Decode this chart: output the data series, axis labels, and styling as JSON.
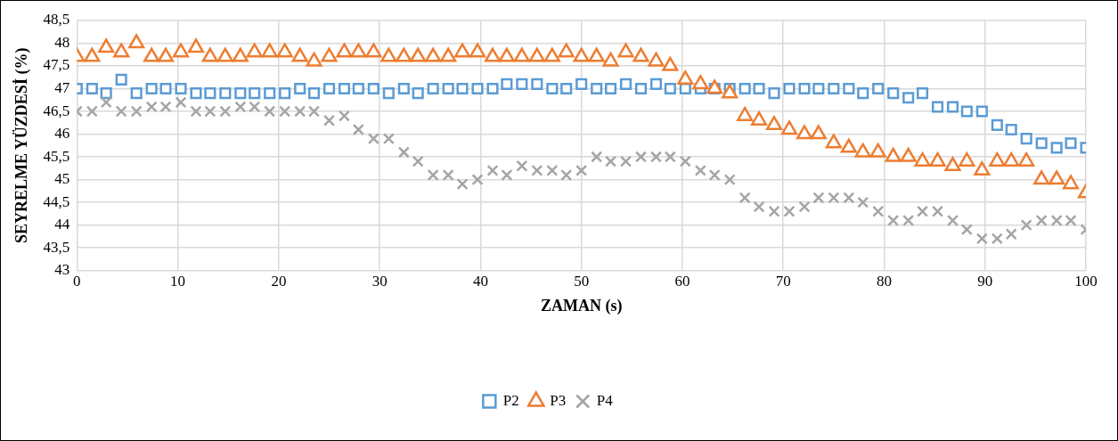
{
  "chart_data": {
    "type": "scatter",
    "xlabel": "ZAMAN (s)",
    "ylabel": "SEYRELME YÜZDESİ (%)",
    "x": [
      0,
      1.5,
      2.9,
      4.4,
      5.9,
      7.4,
      8.8,
      10.3,
      11.8,
      13.2,
      14.7,
      16.2,
      17.6,
      19.1,
      20.6,
      22.1,
      23.5,
      25,
      26.5,
      27.9,
      29.4,
      30.9,
      32.4,
      33.8,
      35.3,
      36.8,
      38.2,
      39.7,
      41.2,
      42.6,
      44.1,
      45.6,
      47.1,
      48.5,
      50,
      51.5,
      52.9,
      54.4,
      55.9,
      57.4,
      58.8,
      60.3,
      61.8,
      63.2,
      64.7,
      66.2,
      67.6,
      69.1,
      70.6,
      72.1,
      73.5,
      75,
      76.5,
      77.9,
      79.4,
      80.9,
      82.4,
      83.8,
      85.3,
      86.8,
      88.2,
      89.7,
      91.2,
      92.6,
      94.1,
      95.6,
      97.1,
      98.5,
      100
    ],
    "series": [
      {
        "name": "P2",
        "color": "#5b9bd5",
        "marker": "square",
        "values": [
          47.0,
          47.0,
          46.9,
          47.2,
          46.9,
          47.0,
          47.0,
          47.0,
          46.9,
          46.9,
          46.9,
          46.9,
          46.9,
          46.9,
          46.9,
          47.0,
          46.9,
          47.0,
          47.0,
          47.0,
          47.0,
          46.9,
          47.0,
          46.9,
          47.0,
          47.0,
          47.0,
          47.0,
          47.0,
          47.1,
          47.1,
          47.1,
          47.0,
          47.0,
          47.1,
          47.0,
          47.0,
          47.1,
          47.0,
          47.1,
          47.0,
          47.0,
          47.0,
          47.0,
          47.0,
          47.0,
          47.0,
          46.9,
          47.0,
          47.0,
          47.0,
          47.0,
          47.0,
          46.9,
          47.0,
          46.9,
          46.8,
          46.9,
          46.6,
          46.6,
          46.5,
          46.5,
          46.2,
          46.1,
          45.9,
          45.8,
          45.7,
          45.8,
          45.7
        ]
      },
      {
        "name": "P3",
        "color": "#ed7d31",
        "marker": "triangle",
        "values": [
          47.7,
          47.7,
          47.9,
          47.8,
          48.0,
          47.7,
          47.7,
          47.8,
          47.9,
          47.7,
          47.7,
          47.7,
          47.8,
          47.8,
          47.8,
          47.7,
          47.6,
          47.7,
          47.8,
          47.8,
          47.8,
          47.7,
          47.7,
          47.7,
          47.7,
          47.7,
          47.8,
          47.8,
          47.7,
          47.7,
          47.7,
          47.7,
          47.7,
          47.8,
          47.7,
          47.7,
          47.6,
          47.8,
          47.7,
          47.6,
          47.5,
          47.2,
          47.1,
          47.0,
          46.9,
          46.4,
          46.3,
          46.2,
          46.1,
          46.0,
          46.0,
          45.8,
          45.7,
          45.6,
          45.6,
          45.5,
          45.5,
          45.4,
          45.4,
          45.3,
          45.4,
          45.2,
          45.4,
          45.4,
          45.4,
          45.0,
          45.0,
          44.9,
          44.7
        ]
      },
      {
        "name": "P4",
        "color": "#a5a5a5",
        "marker": "cross",
        "values": [
          46.5,
          46.5,
          46.7,
          46.5,
          46.5,
          46.6,
          46.6,
          46.7,
          46.5,
          46.5,
          46.5,
          46.6,
          46.6,
          46.5,
          46.5,
          46.5,
          46.5,
          46.3,
          46.4,
          46.1,
          45.9,
          45.9,
          45.6,
          45.4,
          45.1,
          45.1,
          44.9,
          45.0,
          45.2,
          45.1,
          45.3,
          45.2,
          45.2,
          45.1,
          45.2,
          45.5,
          45.4,
          45.4,
          45.5,
          45.5,
          45.5,
          45.4,
          45.2,
          45.1,
          45.0,
          44.6,
          44.4,
          44.3,
          44.3,
          44.4,
          44.6,
          44.6,
          44.6,
          44.5,
          44.3,
          44.1,
          44.1,
          44.3,
          44.3,
          44.1,
          43.9,
          43.7,
          43.7,
          43.8,
          44.0,
          44.1,
          44.1,
          44.1,
          43.9
        ]
      }
    ],
    "xlim": [
      0,
      100
    ],
    "xticks": [
      0,
      10,
      20,
      30,
      40,
      50,
      60,
      70,
      80,
      90,
      100
    ],
    "ylim": [
      43,
      48.5
    ],
    "yticks": [
      43,
      {
        "value": 43.5,
        "label": "43,5"
      },
      44,
      {
        "value": 44.5,
        "label": "44,5"
      },
      45,
      {
        "value": 45.5,
        "label": "45,5"
      },
      46,
      {
        "value": 46.5,
        "label": "46,5"
      },
      47,
      {
        "value": 47.5,
        "label": "47,5"
      },
      48,
      {
        "value": 48.5,
        "label": "48,5"
      }
    ],
    "grid": true,
    "legend": "bottom"
  }
}
